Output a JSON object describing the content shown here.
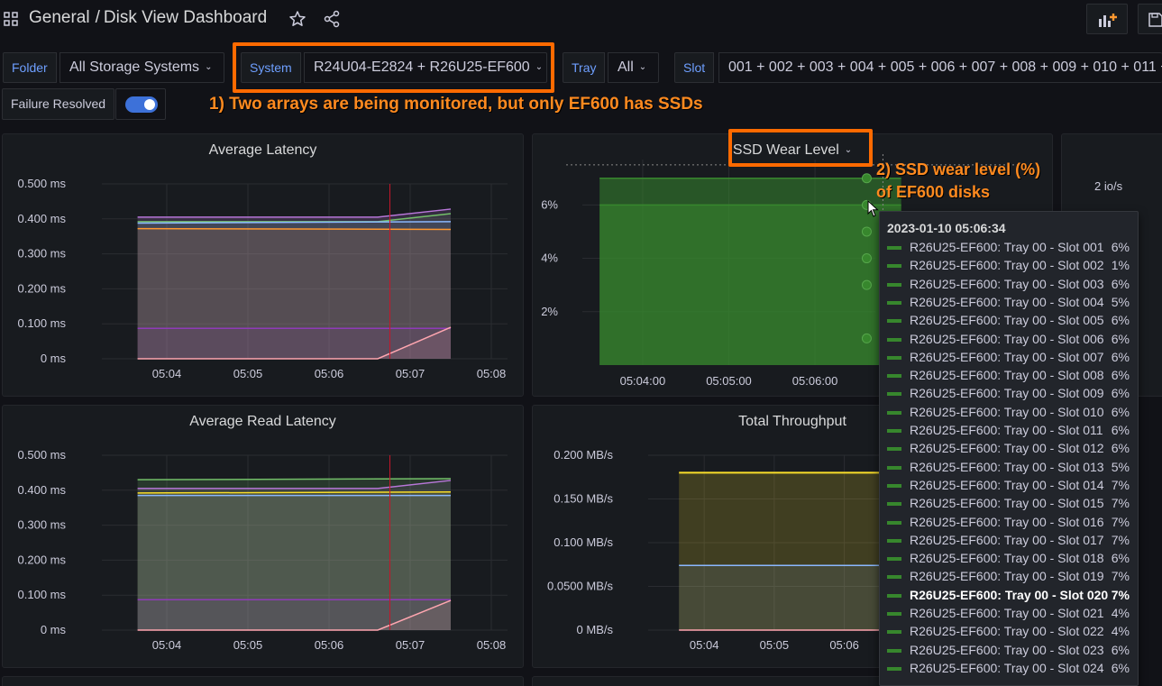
{
  "header": {
    "breadcrumb_root": "General",
    "breadcrumb_sep": "/",
    "dashboard_title": "Disk View Dashboard"
  },
  "variables": [
    {
      "label": "Folder",
      "value": "All Storage Systems"
    },
    {
      "label": "System",
      "value": "R24U04-E2824 + R26U25-EF600"
    },
    {
      "label": "Tray",
      "value": "All"
    },
    {
      "label": "Slot",
      "value": "001 + 002 + 003 + 004 + 005 + 006 + 007 + 008 + 009 + 010 + 011 +"
    }
  ],
  "failure_resolved": {
    "label": "Failure Resolved",
    "enabled": true
  },
  "annotations": {
    "note1": "1) Two arrays are being monitored, but only EF600 has SSDs",
    "note2_line1": "2) SSD wear level (%)",
    "note2_line2": "of EF600 disks"
  },
  "colors": {
    "accent": "#3d71d9",
    "annotation": "#ff6a00",
    "wear_green": "#37872d",
    "throughput_yellow": "#fade2a",
    "cursor_line": "#c4162a"
  },
  "panels": {
    "avg_latency": {
      "title": "Average Latency"
    },
    "ssd_wear": {
      "title": "SSD Wear Level"
    },
    "right_partial": {
      "tick": "2 io/s"
    },
    "avg_read_latency": {
      "title": "Average Read Latency"
    },
    "total_throughput": {
      "title": "Total Throughput"
    }
  },
  "chart_data": [
    {
      "id": "avg_latency",
      "type": "area",
      "title": "Average Latency",
      "xticks": [
        "05:04",
        "05:05",
        "05:06",
        "05:07",
        "05:08"
      ],
      "yticks": [
        "0 ms",
        "0.100 ms",
        "0.200 ms",
        "0.300 ms",
        "0.400 ms",
        "0.500 ms"
      ],
      "ylim": [
        0,
        0.5
      ],
      "x_range": [
        "05:03.6",
        "05:08"
      ],
      "series": [
        {
          "color": "#b877d9",
          "points": [
            [
              3.64,
              0.405
            ],
            [
              6.6,
              0.405
            ],
            [
              7.5,
              0.428
            ]
          ]
        },
        {
          "color": "#73bf69",
          "points": [
            [
              3.64,
              0.392
            ],
            [
              6.6,
              0.392
            ],
            [
              7.5,
              0.415
            ]
          ]
        },
        {
          "color": "#8ab8ff",
          "points": [
            [
              3.64,
              0.388
            ],
            [
              7.5,
              0.392
            ]
          ]
        },
        {
          "color": "#ff9830",
          "points": [
            [
              3.64,
              0.372
            ],
            [
              7.5,
              0.37
            ]
          ]
        },
        {
          "color": "#8f3bb8",
          "points": [
            [
              3.64,
              0.087
            ],
            [
              7.5,
              0.087
            ]
          ]
        },
        {
          "color": "#ffa6b0",
          "points": [
            [
              3.64,
              0.0
            ],
            [
              6.6,
              0.0
            ],
            [
              7.5,
              0.09
            ]
          ]
        }
      ],
      "cursor_x": 6.75
    },
    {
      "id": "ssd_wear",
      "type": "area",
      "title": "SSD Wear Level",
      "xticks": [
        "05:04:00",
        "05:05:00",
        "05:06:00"
      ],
      "yticks": [
        "2%",
        "4%",
        "6%"
      ],
      "ylim": [
        0,
        7.7
      ],
      "series": [
        {
          "name": "R26U25-EF600: Tray 00 - Slot 014",
          "color": "#37872d",
          "points": [
            [
              3.5,
              7
            ],
            [
              7.0,
              7
            ]
          ]
        },
        {
          "name": "R26U25-EF600: Tray 00 - Slot 001",
          "color": "#37872d",
          "points": [
            [
              3.5,
              6
            ],
            [
              7.0,
              6
            ]
          ]
        }
      ]
    },
    {
      "id": "avg_read_latency",
      "type": "area",
      "title": "Average Read Latency",
      "xticks": [
        "05:04",
        "05:05",
        "05:06",
        "05:07",
        "05:08"
      ],
      "yticks": [
        "0 ms",
        "0.100 ms",
        "0.200 ms",
        "0.300 ms",
        "0.400 ms",
        "0.500 ms"
      ],
      "ylim": [
        0,
        0.5
      ],
      "series": [
        {
          "color": "#73bf69",
          "points": [
            [
              3.64,
              0.43
            ],
            [
              7.5,
              0.433
            ]
          ]
        },
        {
          "color": "#b877d9",
          "points": [
            [
              3.64,
              0.405
            ],
            [
              6.6,
              0.405
            ],
            [
              7.5,
              0.428
            ]
          ]
        },
        {
          "color": "#fade2a",
          "points": [
            [
              3.64,
              0.392
            ],
            [
              7.5,
              0.395
            ]
          ]
        },
        {
          "color": "#8ab8ff",
          "points": [
            [
              3.64,
              0.385
            ],
            [
              7.5,
              0.385
            ]
          ]
        },
        {
          "color": "#8f3bb8",
          "points": [
            [
              3.64,
              0.087
            ],
            [
              7.5,
              0.087
            ]
          ]
        },
        {
          "color": "#ffa6b0",
          "points": [
            [
              3.64,
              0.0
            ],
            [
              6.6,
              0.0
            ],
            [
              7.5,
              0.085
            ]
          ]
        }
      ],
      "cursor_x": 6.75
    },
    {
      "id": "total_throughput",
      "type": "area",
      "title": "Total Throughput",
      "xticks": [
        "05:04",
        "05:05",
        "05:06"
      ],
      "yticks": [
        "0 MB/s",
        "0.0500 MB/s",
        "0.100 MB/s",
        "0.150 MB/s",
        "0.200 MB/s"
      ],
      "ylim": [
        0,
        0.2
      ],
      "series": [
        {
          "color": "#fade2a",
          "points": [
            [
              3.64,
              0.18
            ],
            [
              6.5,
              0.18
            ]
          ]
        },
        {
          "color": "#8ab8ff",
          "points": [
            [
              3.64,
              0.074
            ],
            [
              6.5,
              0.074
            ]
          ]
        },
        {
          "color": "#ffa6b0",
          "points": [
            [
              3.64,
              0.0
            ],
            [
              6.5,
              0.0
            ]
          ]
        }
      ]
    }
  ],
  "tooltip": {
    "time": "2023-01-10 05:06:34",
    "rows": [
      {
        "name": "R26U25-EF600: Tray 00 - Slot 001",
        "value": "6%"
      },
      {
        "name": "R26U25-EF600: Tray 00 - Slot 002",
        "value": "1%"
      },
      {
        "name": "R26U25-EF600: Tray 00 - Slot 003",
        "value": "6%"
      },
      {
        "name": "R26U25-EF600: Tray 00 - Slot 004",
        "value": "5%"
      },
      {
        "name": "R26U25-EF600: Tray 00 - Slot 005",
        "value": "6%"
      },
      {
        "name": "R26U25-EF600: Tray 00 - Slot 006",
        "value": "6%"
      },
      {
        "name": "R26U25-EF600: Tray 00 - Slot 007",
        "value": "6%"
      },
      {
        "name": "R26U25-EF600: Tray 00 - Slot 008",
        "value": "6%"
      },
      {
        "name": "R26U25-EF600: Tray 00 - Slot 009",
        "value": "6%"
      },
      {
        "name": "R26U25-EF600: Tray 00 - Slot 010",
        "value": "6%"
      },
      {
        "name": "R26U25-EF600: Tray 00 - Slot 011",
        "value": "6%"
      },
      {
        "name": "R26U25-EF600: Tray 00 - Slot 012",
        "value": "6%"
      },
      {
        "name": "R26U25-EF600: Tray 00 - Slot 013",
        "value": "5%"
      },
      {
        "name": "R26U25-EF600: Tray 00 - Slot 014",
        "value": "7%"
      },
      {
        "name": "R26U25-EF600: Tray 00 - Slot 015",
        "value": "7%"
      },
      {
        "name": "R26U25-EF600: Tray 00 - Slot 016",
        "value": "7%"
      },
      {
        "name": "R26U25-EF600: Tray 00 - Slot 017",
        "value": "7%"
      },
      {
        "name": "R26U25-EF600: Tray 00 - Slot 018",
        "value": "6%"
      },
      {
        "name": "R26U25-EF600: Tray 00 - Slot 019",
        "value": "7%"
      },
      {
        "name": "R26U25-EF600: Tray 00 - Slot 020",
        "value": "7%",
        "highlight": true
      },
      {
        "name": "R26U25-EF600: Tray 00 - Slot 021",
        "value": "4%"
      },
      {
        "name": "R26U25-EF600: Tray 00 - Slot 022",
        "value": "4%"
      },
      {
        "name": "R26U25-EF600: Tray 00 - Slot 023",
        "value": "6%"
      },
      {
        "name": "R26U25-EF600: Tray 00 - Slot 024",
        "value": "6%"
      }
    ]
  }
}
